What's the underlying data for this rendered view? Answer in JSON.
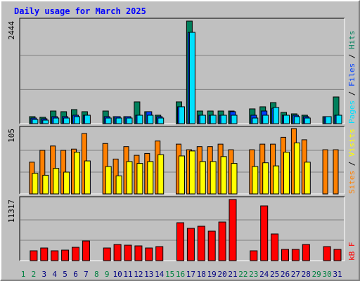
{
  "chart_data": {
    "type": "bar",
    "title": "Daily usage for March 2025",
    "categories": [
      "1",
      "2",
      "3",
      "4",
      "5",
      "6",
      "7",
      "8",
      "9",
      "10",
      "11",
      "12",
      "13",
      "14",
      "15",
      "16",
      "17",
      "18",
      "19",
      "20",
      "21",
      "22",
      "23",
      "24",
      "25",
      "26",
      "27",
      "28",
      "29",
      "30",
      "31"
    ],
    "category_color": "#000080",
    "highlight_categories": [
      0,
      1,
      7,
      8,
      14,
      15,
      21,
      22,
      28,
      29
    ],
    "highlight_color": "#008040",
    "legend_separator": "/",
    "panels": [
      {
        "ylim": [
          0,
          2444
        ],
        "yticks": [
          2444
        ],
        "series": [
          {
            "name": "Hits",
            "color": "#00805c",
            "values": [
              0,
              167,
              151,
              301,
              285,
              335,
              285,
              0,
              301,
              167,
              167,
              519,
              285,
              201,
              0,
              519,
              2444,
              301,
              301,
              301,
              301,
              0,
              352,
              402,
              502,
              268,
              234,
              201,
              0,
              167,
              636
            ]
          },
          {
            "name": "Files",
            "color": "#0040ff",
            "values": [
              0,
              134,
              117,
              167,
              167,
              201,
              201,
              0,
              167,
              167,
              167,
              201,
              285,
              167,
              0,
              402,
              2176,
              201,
              201,
              201,
              285,
              0,
              201,
              301,
              368,
              201,
              201,
              167,
              0,
              167,
              201
            ]
          },
          {
            "name": "Pages",
            "color": "#00e0ff",
            "values": [
              0,
              100,
              84,
              134,
              134,
              167,
              201,
              0,
              134,
              134,
              134,
              201,
              201,
              134,
              0,
              402,
              2176,
              201,
              201,
              201,
              201,
              0,
              134,
              201,
              385,
              201,
              167,
              134,
              0,
              167,
              201
            ]
          }
        ]
      },
      {
        "ylim": [
          0,
          105
        ],
        "yticks": [
          105
        ],
        "series": [
          {
            "name": "Visits",
            "color": "#ffff00",
            "values": [
              0,
              33,
              30,
              41,
              35,
              67,
              53,
              0,
              44,
              29,
              52,
              49,
              52,
              63,
              0,
              61,
              69,
              52,
              52,
              60,
              49,
              0,
              44,
              50,
              45,
              67,
              82,
              51,
              0,
              0,
              0
            ]
          },
          {
            "name": "Sites",
            "color": "#ff8000",
            "values": [
              0,
              51,
              70,
              77,
              70,
              72,
              97,
              0,
              81,
              56,
              76,
              62,
              65,
              85,
              0,
              80,
              71,
              76,
              76,
              80,
              71,
              0,
              71,
              80,
              80,
              91,
              105,
              87,
              0,
              71,
              71
            ]
          }
        ]
      },
      {
        "ylim": [
          0,
          11317
        ],
        "yticks": [
          11317
        ],
        "series": [
          {
            "name": "kB F",
            "color": "#ff0000",
            "values": [
              0,
              1820,
              2340,
              1820,
              1950,
              2470,
              3640,
              0,
              2340,
              2990,
              2860,
              2730,
              2340,
              2600,
              0,
              7020,
              5980,
              6370,
              5460,
              7150,
              11317,
              0,
              1820,
              10140,
              4940,
              2080,
              2080,
              2990,
              0,
              2600,
              2080
            ]
          }
        ]
      }
    ]
  }
}
